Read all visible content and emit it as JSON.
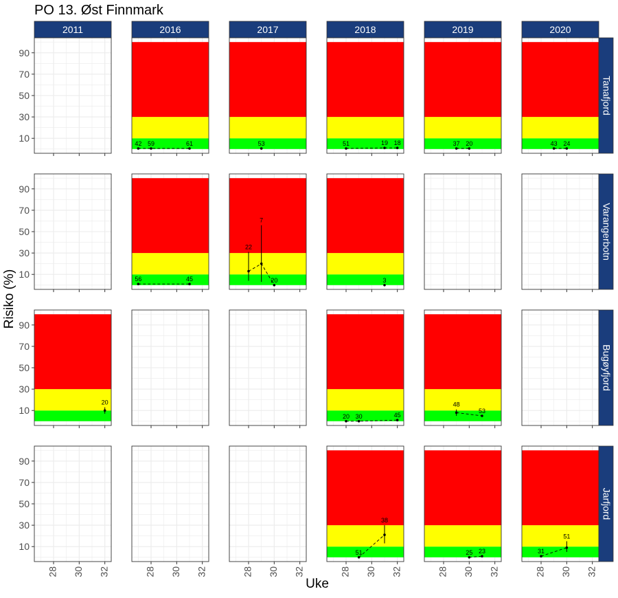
{
  "chart_data": {
    "type": "faceted-line",
    "title": "PO 13. Øst Finnmark",
    "xlabel": "Uke",
    "ylabel": "Risiko (%)",
    "x_range": [
      26.5,
      32.5
    ],
    "x_ticks": [
      28,
      30,
      32
    ],
    "y_range": [
      -4,
      104
    ],
    "y_ticks": [
      10,
      30,
      50,
      70,
      90
    ],
    "columns": [
      "2011",
      "2016",
      "2017",
      "2018",
      "2019",
      "2020"
    ],
    "rows": [
      "Tanafjord",
      "Varangerbotn",
      "Bugøyfjord",
      "Jarfjord"
    ],
    "zones": [
      {
        "name": "green",
        "from": 0,
        "to": 10,
        "color": "#00ff00"
      },
      {
        "name": "yellow",
        "from": 10,
        "to": 30,
        "color": "#ffff00"
      },
      {
        "name": "red",
        "from": 30,
        "to": 100,
        "color": "#ff0000"
      }
    ],
    "colors": {
      "header": "#1a3d7c",
      "header_text": "#ffffff",
      "grid": "#ebebeb",
      "border": "#333333"
    },
    "panels": [
      {
        "row": "Tanafjord",
        "col": "2016",
        "zones": true,
        "points": [
          {
            "x": 27,
            "y": 0.5,
            "label": "42"
          },
          {
            "x": 28,
            "y": 0.5,
            "label": "59"
          },
          {
            "x": 31,
            "y": 0.5,
            "label": "61"
          }
        ]
      },
      {
        "row": "Tanafjord",
        "col": "2017",
        "zones": true,
        "points": [
          {
            "x": 29,
            "y": 0.5,
            "label": "53"
          }
        ]
      },
      {
        "row": "Tanafjord",
        "col": "2018",
        "zones": true,
        "points": [
          {
            "x": 28,
            "y": 0.5,
            "label": "51"
          },
          {
            "x": 31,
            "y": 1,
            "label": "19"
          },
          {
            "x": 32,
            "y": 1,
            "label": "18"
          }
        ]
      },
      {
        "row": "Tanafjord",
        "col": "2019",
        "zones": true,
        "points": [
          {
            "x": 29,
            "y": 0.5,
            "label": "37"
          },
          {
            "x": 30,
            "y": 0.5,
            "label": "20"
          }
        ]
      },
      {
        "row": "Tanafjord",
        "col": "2020",
        "zones": true,
        "points": [
          {
            "x": 29,
            "y": 0.5,
            "label": "43"
          },
          {
            "x": 30,
            "y": 0.5,
            "label": "24"
          }
        ]
      },
      {
        "row": "Varangerbotn",
        "col": "2016",
        "zones": true,
        "points": [
          {
            "x": 27,
            "y": 1,
            "label": "56"
          },
          {
            "x": 31,
            "y": 1,
            "label": "45"
          }
        ]
      },
      {
        "row": "Varangerbotn",
        "col": "2017",
        "zones": true,
        "points": [
          {
            "x": 28,
            "y": 13,
            "low": 4,
            "high": 31,
            "label": "22"
          },
          {
            "x": 29,
            "y": 20,
            "low": 3,
            "high": 56,
            "label": "7"
          },
          {
            "x": 30,
            "y": 0,
            "label": "20"
          }
        ]
      },
      {
        "row": "Varangerbotn",
        "col": "2018",
        "zones": true,
        "points": [
          {
            "x": 31,
            "y": 0,
            "label": "3"
          }
        ]
      },
      {
        "row": "Varangerbotn",
        "col": "2019",
        "zones": false,
        "points": []
      },
      {
        "row": "Varangerbotn",
        "col": "2020",
        "zones": false,
        "points": []
      },
      {
        "row": "Bugøyfjord",
        "col": "2011",
        "zones": true,
        "points": [
          {
            "x": 32,
            "y": 10,
            "low": 7,
            "high": 13,
            "label": "20"
          }
        ]
      },
      {
        "row": "Bugøyfjord",
        "col": "2018",
        "zones": true,
        "points": [
          {
            "x": 28,
            "y": 0,
            "label": "20"
          },
          {
            "x": 29,
            "y": 0,
            "label": "30"
          },
          {
            "x": 32,
            "y": 1,
            "label": "45"
          }
        ]
      },
      {
        "row": "Bugøyfjord",
        "col": "2019",
        "zones": true,
        "points": [
          {
            "x": 29,
            "y": 8,
            "low": 5,
            "high": 11,
            "label": "48"
          },
          {
            "x": 31,
            "y": 5,
            "label": "53"
          }
        ]
      },
      {
        "row": "Jarfjord",
        "col": "2018",
        "zones": true,
        "points": [
          {
            "x": 29,
            "y": 0,
            "label": "51"
          },
          {
            "x": 31,
            "y": 21,
            "low": 13,
            "high": 30,
            "label": "38"
          }
        ]
      },
      {
        "row": "Jarfjord",
        "col": "2019",
        "zones": true,
        "points": [
          {
            "x": 30,
            "y": 0,
            "label": "25"
          },
          {
            "x": 31,
            "y": 1,
            "label": "23"
          }
        ]
      },
      {
        "row": "Jarfjord",
        "col": "2020",
        "zones": true,
        "points": [
          {
            "x": 28,
            "y": 1,
            "label": "31"
          },
          {
            "x": 30,
            "y": 9,
            "low": 5,
            "high": 15,
            "label": "51"
          }
        ]
      }
    ]
  }
}
